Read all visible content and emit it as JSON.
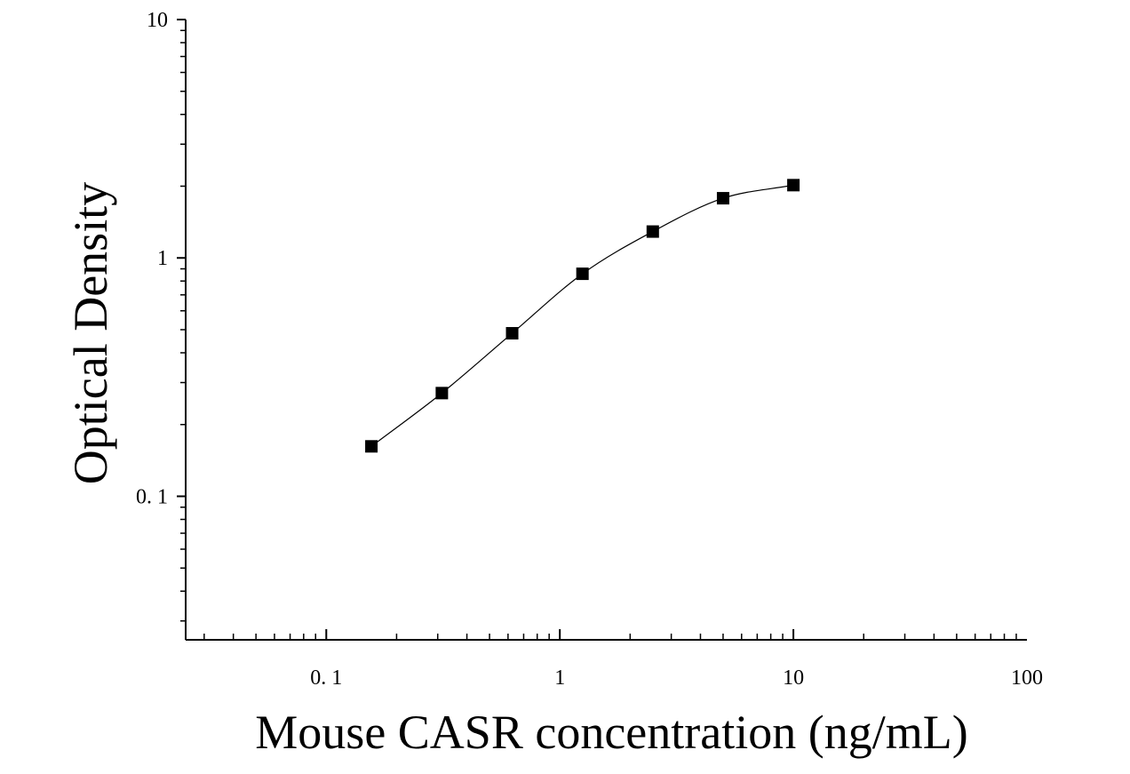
{
  "chart_data": {
    "type": "scatter",
    "title": "",
    "xlabel": "Mouse CASR concentration (ng/mL)",
    "ylabel": "Optical Density",
    "xscale": "log",
    "yscale": "log",
    "xlim": [
      0.025,
      100
    ],
    "ylim": [
      0.025,
      10
    ],
    "x_ticks": [
      0.1,
      1,
      10,
      100
    ],
    "x_tick_labels": [
      "0. 1",
      "1",
      "10",
      "100"
    ],
    "y_ticks": [
      0.1,
      1,
      10
    ],
    "y_tick_labels": [
      "0. 1",
      "1",
      "10"
    ],
    "grid": false,
    "legend": "none",
    "marker": "square",
    "series": [
      {
        "x": [
          0.156,
          0.3125,
          0.625,
          1.25,
          2.5,
          5,
          10
        ],
        "y": [
          0.162,
          0.271,
          0.483,
          0.858,
          1.29,
          1.78,
          2.02
        ]
      }
    ],
    "fit_curve": true,
    "colors": {
      "marker": "#000000",
      "curve": "#000000",
      "axes": "#000000"
    }
  }
}
